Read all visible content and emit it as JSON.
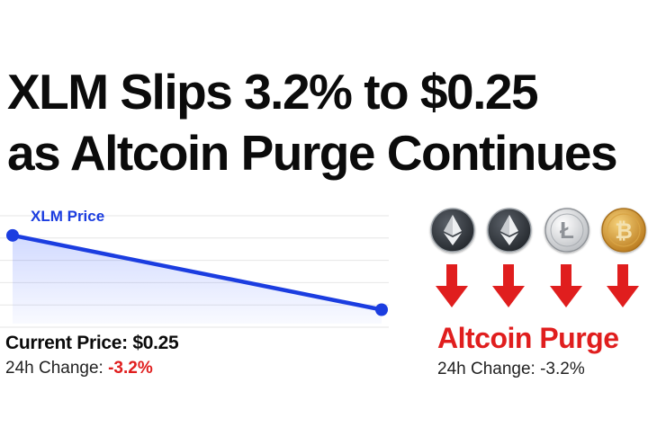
{
  "headline": {
    "line1": "XLM Slips 3.2% to $0.25",
    "line2": "as Altcoin Purge Continues"
  },
  "colors": {
    "line": "#1b3de0",
    "accent_red": "#e01e1e",
    "text": "#0b0b0b"
  },
  "chart_data": {
    "type": "line",
    "title": "",
    "series": [
      {
        "name": "XLM Price",
        "x": [
          0,
          1
        ],
        "values": [
          0.258,
          0.25
        ]
      }
    ],
    "xlabel": "",
    "ylabel": "",
    "xlim": [
      0,
      1
    ],
    "ylim": [
      0.2485,
      0.2605
    ],
    "grid": true,
    "legend": "top-left"
  },
  "price_info": {
    "current_label": "Current Price: $0.25",
    "change_label": "24h Change:",
    "change_value": "-3.2%"
  },
  "coins": [
    {
      "icon": "ethereum-icon",
      "symbol": "Ξ",
      "style": "dark"
    },
    {
      "icon": "ethereum-icon",
      "symbol": "Ξ",
      "style": "dark"
    },
    {
      "icon": "litecoin-icon",
      "symbol": "Ł",
      "style": "silver"
    },
    {
      "icon": "bitcoin-icon",
      "symbol": "₿",
      "style": "gold"
    }
  ],
  "purge": {
    "title": "Altcoin Purge",
    "change": "24h Change: -3.2%"
  }
}
